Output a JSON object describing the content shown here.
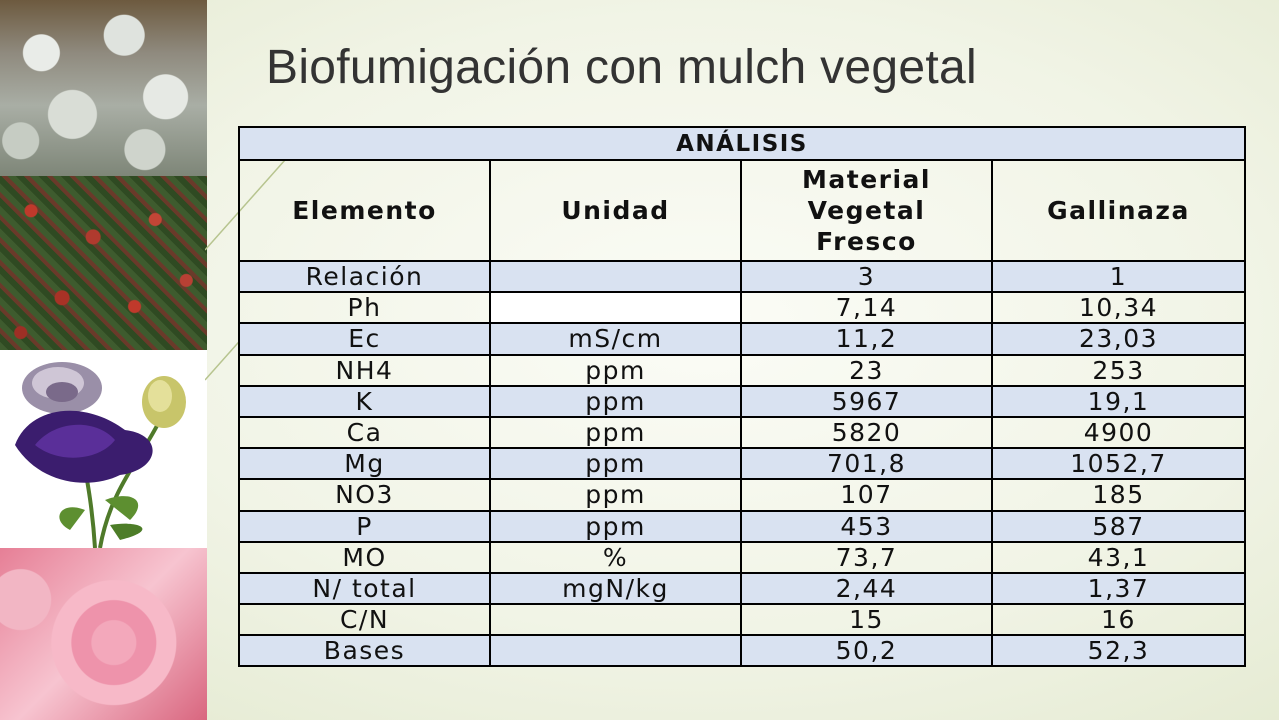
{
  "slide": {
    "title": "Biofumigación con mulch vegetal"
  },
  "photos": [
    {
      "name": "gypsophila-photo"
    },
    {
      "name": "hypericum-photo"
    },
    {
      "name": "lisianthus-photo"
    },
    {
      "name": "rose-photo"
    }
  ],
  "table": {
    "header": "ANÁLISIS",
    "columns": [
      "Elemento",
      "Unidad",
      "Material Vegetal Fresco",
      "Gallinaza"
    ],
    "column_lines": [
      [
        "Elemento"
      ],
      [
        "Unidad"
      ],
      [
        "Material",
        "Vegetal",
        "Fresco"
      ],
      [
        "Gallinaza"
      ]
    ],
    "rows": [
      {
        "elemento": "Relación",
        "unidad": "",
        "material": "3",
        "gallinaza": "1"
      },
      {
        "elemento": "Ph",
        "unidad": "",
        "material": "7,14",
        "gallinaza": "10,34"
      },
      {
        "elemento": "Ec",
        "unidad": "mS/cm",
        "material": "11,2",
        "gallinaza": "23,03"
      },
      {
        "elemento": "NH4",
        "unidad": "ppm",
        "material": "23",
        "gallinaza": "253"
      },
      {
        "elemento": "K",
        "unidad": "ppm",
        "material": "5967",
        "gallinaza": "19,1"
      },
      {
        "elemento": "Ca",
        "unidad": "ppm",
        "material": "5820",
        "gallinaza": "4900"
      },
      {
        "elemento": "Mg",
        "unidad": "ppm",
        "material": "701,8",
        "gallinaza": "1052,7"
      },
      {
        "elemento": "NO3",
        "unidad": "ppm",
        "material": "107",
        "gallinaza": "185"
      },
      {
        "elemento": "P",
        "unidad": "ppm",
        "material": "453",
        "gallinaza": "587"
      },
      {
        "elemento": "MO",
        "unidad": "%",
        "material": "73,7",
        "gallinaza": "43,1"
      },
      {
        "elemento": "N/ total",
        "unidad": "mgN/kg",
        "material": "2,44",
        "gallinaza": "1,37"
      },
      {
        "elemento": "C/N",
        "unidad": "",
        "material": "15",
        "gallinaza": "16"
      },
      {
        "elemento": "Bases",
        "unidad": "",
        "material": "50,2",
        "gallinaza": "52,3"
      }
    ]
  },
  "colors": {
    "band": "#d9e2f1",
    "title": "#333333",
    "border": "#000000"
  }
}
